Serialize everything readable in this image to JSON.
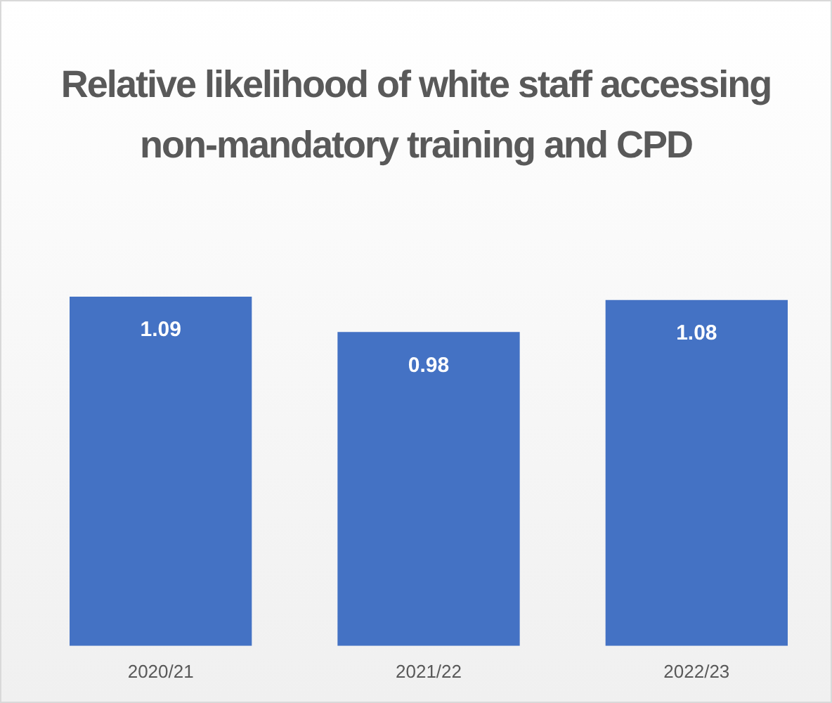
{
  "chart_data": {
    "type": "bar",
    "title": "Relative likelihood of white staff accessing non-mandatory training and CPD",
    "categories": [
      "2020/21",
      "2021/22",
      "2022/23"
    ],
    "values": [
      1.09,
      0.98,
      1.08
    ],
    "color": "#4472c4",
    "tick_labels": "x",
    "grid": false,
    "legend": false,
    "data_labels": true
  }
}
